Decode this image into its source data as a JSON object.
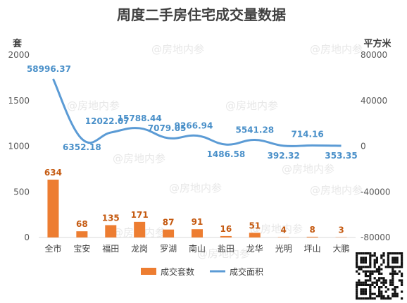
{
  "chart_data": {
    "type": "bar",
    "title": "周度二手房住宅成交量数据",
    "categories": [
      "全市",
      "宝安",
      "福田",
      "龙岗",
      "罗湖",
      "南山",
      "盐田",
      "龙华",
      "光明",
      "坪山",
      "大鹏"
    ],
    "series": [
      {
        "name": "成交套数",
        "type": "bar",
        "axis": "left",
        "color": "#ed7d31",
        "values": [
          634,
          68,
          135,
          171,
          87,
          91,
          16,
          51,
          4,
          8,
          3
        ]
      },
      {
        "name": "成交面积",
        "type": "line",
        "axis": "right",
        "color": "#5b9bd5",
        "values": [
          58996.37,
          6352.18,
          12022.07,
          15788.44,
          7079.05,
          9266.94,
          1486.58,
          5541.28,
          392.32,
          714.16,
          353.35
        ]
      }
    ],
    "y_left": {
      "unit": "套",
      "min": 0,
      "max": 2000,
      "ticks": [
        "0",
        "500",
        "1000",
        "1500",
        "2000"
      ]
    },
    "y_right": {
      "unit": "平方米",
      "min": -80000,
      "max": 80000,
      "ticks": [
        "-80000",
        "-40000",
        "0",
        "40000",
        "80000"
      ]
    },
    "legend_position": "bottom"
  },
  "watermark": "@房地内参"
}
